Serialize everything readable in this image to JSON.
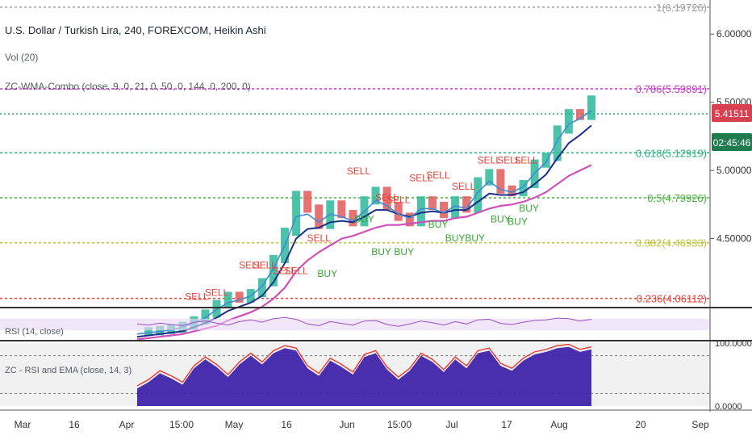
{
  "header": {
    "title": "U.S. Dollar / Turkish Lira, 240, FOREXCOM, Heikin Ashi",
    "volume": "Vol (20)",
    "indicator": "ZC-WMA-Combo (close, 9, 0, 21, 0, 50, 0, 144, 0, 200, 0)",
    "rsi_label": "RSI (14, close)",
    "osc_label": "ZC - RSI and EMA (close, 14, 3)"
  },
  "price_badge": {
    "price": "5.41511",
    "countdown": "02:45:46",
    "color": "#d9404f",
    "countdown_color": "#1f7a4d"
  },
  "colors": {
    "candle": "#2db89a",
    "wma_fast": "#3f8ad6",
    "wma_mid": "#1b2f8a",
    "wma_slow": "#d14fb9",
    "rsi": "#9b4fc2",
    "osc_fill": "#3b1ea8",
    "osc_red": "#e8413a",
    "sell": "#e8413a",
    "buy": "#36a832"
  },
  "chart_data": {
    "type": "line",
    "x_ticks": [
      "Mar",
      "16",
      "Apr",
      "15:00",
      "May",
      "16",
      "Jun",
      "15:00",
      "Jul",
      "17",
      "Aug",
      "20",
      "Sep"
    ],
    "y_ticks": [
      "6.00000",
      "5.50000",
      "5.00000",
      "4.50000"
    ],
    "ylim": [
      4.0,
      6.25
    ],
    "fib_levels": [
      {
        "label": "1(6.19726)",
        "value": 6.19726,
        "color": "#9e9e9e"
      },
      {
        "label": "0.786(5.59891)",
        "value": 5.59891,
        "color": "#cc33cc"
      },
      {
        "label": "0.618(5.12919)",
        "value": 5.12919,
        "color": "#26b37b"
      },
      {
        "label": "0.5(4.79926)",
        "value": 4.79926,
        "color": "#45b33a"
      },
      {
        "label": "0.382(4.46933)",
        "value": 4.46933,
        "color": "#c2c23a"
      },
      {
        "label": "0.236(4.06112)",
        "value": 4.06112,
        "color": "#e8413a"
      }
    ],
    "price_series": {
      "name": "USD/TRY",
      "x": [
        0,
        4,
        8,
        12,
        16,
        20,
        24,
        28,
        32,
        36,
        40,
        44,
        48,
        52,
        56,
        60,
        64,
        68,
        72,
        76,
        80,
        84,
        88,
        92,
        96,
        100,
        104,
        108,
        112,
        116,
        120,
        124,
        128,
        132,
        136,
        140,
        144,
        148,
        152,
        156,
        160
      ],
      "y": [
        3.82,
        3.82,
        3.83,
        3.84,
        3.86,
        3.9,
        3.95,
        4.02,
        4.08,
        4.06,
        4.1,
        4.18,
        4.35,
        4.55,
        4.82,
        4.72,
        4.6,
        4.75,
        4.68,
        4.62,
        4.78,
        4.85,
        4.74,
        4.66,
        4.62,
        4.78,
        4.74,
        4.68,
        4.78,
        4.72,
        4.92,
        4.98,
        4.86,
        4.84,
        4.9,
        5.05,
        5.1,
        5.3,
        5.42,
        5.4,
        5.52
      ]
    },
    "wma_fast": [
      3.8,
      3.81,
      3.82,
      3.83,
      3.85,
      3.88,
      3.92,
      3.98,
      4.03,
      4.05,
      4.08,
      4.15,
      4.28,
      4.45,
      4.66,
      4.68,
      4.62,
      4.68,
      4.66,
      4.63,
      4.7,
      4.78,
      4.74,
      4.68,
      4.65,
      4.72,
      4.72,
      4.69,
      4.74,
      4.72,
      4.84,
      4.92,
      4.86,
      4.84,
      4.88,
      4.98,
      5.06,
      5.22,
      5.34,
      5.38,
      5.44
    ],
    "wma_mid": [
      3.78,
      3.79,
      3.8,
      3.81,
      3.82,
      3.85,
      3.88,
      3.92,
      3.97,
      4.0,
      4.03,
      4.08,
      4.18,
      4.32,
      4.5,
      4.57,
      4.58,
      4.62,
      4.63,
      4.62,
      4.66,
      4.71,
      4.71,
      4.68,
      4.66,
      4.69,
      4.7,
      4.69,
      4.71,
      4.71,
      4.77,
      4.83,
      4.82,
      4.82,
      4.84,
      4.9,
      4.97,
      5.09,
      5.2,
      5.26,
      5.33
    ],
    "wma_slow": [
      3.76,
      3.77,
      3.78,
      3.79,
      3.8,
      3.82,
      3.84,
      3.86,
      3.9,
      3.93,
      3.96,
      4.0,
      4.06,
      4.14,
      4.26,
      4.34,
      4.4,
      4.45,
      4.5,
      4.52,
      4.55,
      4.58,
      4.6,
      4.6,
      4.61,
      4.62,
      4.63,
      4.63,
      4.65,
      4.66,
      4.69,
      4.72,
      4.74,
      4.75,
      4.77,
      4.8,
      4.84,
      4.9,
      4.96,
      5.0,
      5.04
    ],
    "signals": [
      {
        "label": "SELL",
        "x": 21,
        "value": 4.05,
        "side": "sell"
      },
      {
        "label": "SELL",
        "x": 28,
        "value": 4.08,
        "side": "sell"
      },
      {
        "label": "SELL",
        "x": 40,
        "value": 4.28,
        "side": "sell"
      },
      {
        "label": "SELL",
        "x": 45,
        "value": 4.28,
        "side": "sell"
      },
      {
        "label": "SELL",
        "x": 52,
        "value": 4.24,
        "side": "sell"
      },
      {
        "label": "SELL",
        "x": 56,
        "value": 4.24,
        "side": "sell"
      },
      {
        "label": "SELL",
        "x": 64,
        "value": 4.48,
        "side": "sell"
      },
      {
        "label": "BUY",
        "x": 67,
        "value": 4.22,
        "side": "buy"
      },
      {
        "label": "SELL",
        "x": 78,
        "value": 4.97,
        "side": "sell"
      },
      {
        "label": "BUY",
        "x": 80,
        "value": 4.62,
        "side": "buy"
      },
      {
        "label": "SELL",
        "x": 88,
        "value": 4.78,
        "side": "sell"
      },
      {
        "label": "SELL",
        "x": 92,
        "value": 4.76,
        "side": "sell"
      },
      {
        "label": "BUY",
        "x": 86,
        "value": 4.38,
        "side": "buy"
      },
      {
        "label": "BUY",
        "x": 94,
        "value": 4.38,
        "side": "buy"
      },
      {
        "label": "SELL",
        "x": 100,
        "value": 4.92,
        "side": "sell"
      },
      {
        "label": "SELL",
        "x": 106,
        "value": 4.94,
        "side": "sell"
      },
      {
        "label": "BUY",
        "x": 106,
        "value": 4.58,
        "side": "buy"
      },
      {
        "label": "SELL",
        "x": 115,
        "value": 4.86,
        "side": "sell"
      },
      {
        "label": "BUY",
        "x": 112,
        "value": 4.48,
        "side": "buy"
      },
      {
        "label": "BUY",
        "x": 119,
        "value": 4.48,
        "side": "buy"
      },
      {
        "label": "SELL",
        "x": 124,
        "value": 5.05,
        "side": "sell"
      },
      {
        "label": "SELL",
        "x": 131,
        "value": 5.05,
        "side": "sell"
      },
      {
        "label": "SELL",
        "x": 137,
        "value": 5.05,
        "side": "sell"
      },
      {
        "label": "BUY",
        "x": 128,
        "value": 4.62,
        "side": "buy"
      },
      {
        "label": "BUY",
        "x": 134,
        "value": 4.6,
        "side": "buy"
      },
      {
        "label": "BUY",
        "x": 138,
        "value": 4.7,
        "side": "buy"
      }
    ],
    "rsi": {
      "ylim": [
        0,
        100
      ],
      "band": [
        30,
        70
      ],
      "values": [
        52,
        48,
        55,
        50,
        46,
        58,
        62,
        55,
        48,
        60,
        66,
        58,
        70,
        74,
        68,
        52,
        46,
        60,
        54,
        48,
        62,
        64,
        50,
        44,
        52,
        62,
        56,
        48,
        60,
        52,
        66,
        68,
        54,
        50,
        58,
        64,
        66,
        72,
        70,
        62,
        68
      ]
    },
    "oscillator": {
      "ylim": [
        0,
        100
      ],
      "y_ticks": [
        "100.0000",
        "0.0000"
      ],
      "levels": [
        80,
        20
      ],
      "values": [
        28,
        38,
        52,
        44,
        34,
        60,
        74,
        62,
        46,
        66,
        80,
        66,
        84,
        92,
        88,
        60,
        48,
        72,
        62,
        50,
        78,
        84,
        58,
        42,
        56,
        80,
        70,
        54,
        74,
        60,
        84,
        88,
        64,
        56,
        72,
        82,
        86,
        92,
        94,
        86,
        90
      ]
    }
  }
}
